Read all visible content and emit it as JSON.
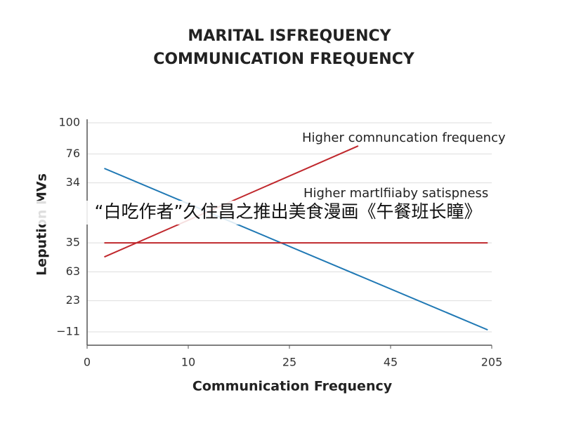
{
  "chart_data": {
    "type": "line",
    "title": [
      "MARITAL ISFREQUENCY",
      "COMMUNICATION FREQUENCY"
    ],
    "x_label": "Communication Frequency",
    "y_label": "Lepution MVs",
    "overlay_text": "“白吃作者”久住昌之推出美食漫画《午餐班长瞳》",
    "annotations": [
      {
        "text": "Higher comnuncation frequency",
        "color": "#333333"
      },
      {
        "text": "Higher martlfiiaby satispness",
        "color": "#aaaaaa"
      }
    ],
    "xlim": [
      0,
      40
    ],
    "xticks": [
      0,
      10,
      {
        "value": 20,
        "label": "25"
      },
      {
        "value": 30,
        "label": "45"
      },
      {
        "value": 40,
        "label": "205"
      }
    ],
    "ylim": [
      0,
      100
    ],
    "yticks": [
      100,
      {
        "value": 86,
        "label": "76"
      },
      {
        "value": 73,
        "label": "34"
      },
      {
        "value": 46,
        "label": "35"
      },
      {
        "value": 33,
        "label": "63"
      },
      {
        "value": 20,
        "label": "23"
      },
      {
        "value": 6,
        "label": "−11"
      }
    ],
    "grid": true,
    "series": [
      {
        "color": "#1f78b4",
        "x": [
          1.7,
          39.6
        ],
        "values": [
          79.5,
          6.9
        ]
      },
      {
        "color": "#c0282d",
        "x": [
          1.7,
          26.8
        ],
        "values": [
          39.7,
          89.6
        ]
      },
      {
        "color": "#c0282d",
        "x": [
          1.7,
          39.6
        ],
        "values": [
          46,
          46
        ]
      }
    ]
  }
}
